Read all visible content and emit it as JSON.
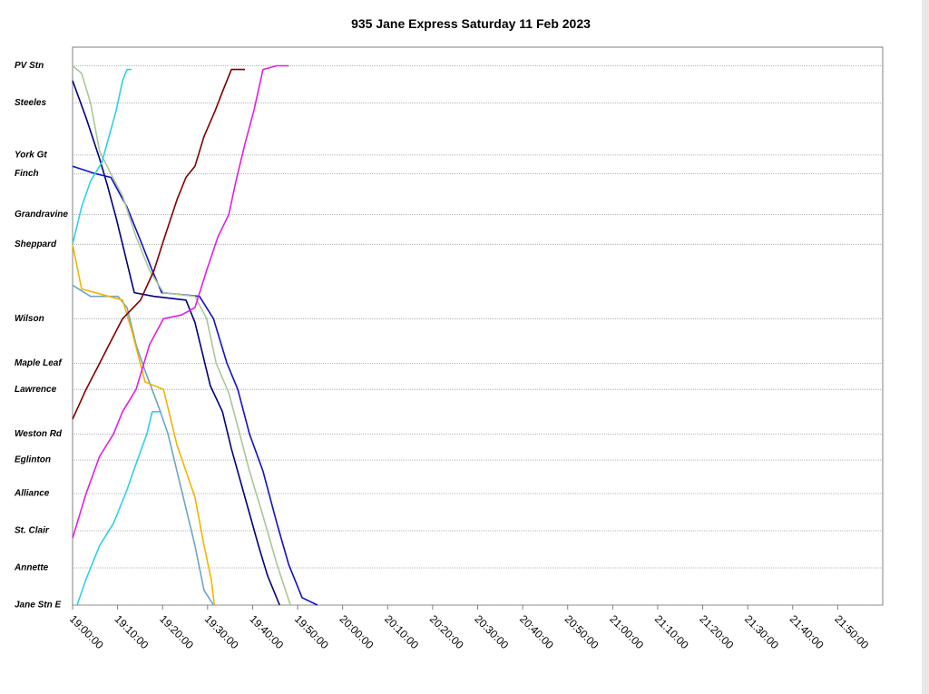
{
  "chart_data": {
    "type": "line",
    "title": "935 Jane Express Saturday 11 Feb 2023",
    "xlim": [
      1140,
      1320
    ],
    "xticks": [
      {
        "value": 1140,
        "label": "19:00:00"
      },
      {
        "value": 1150,
        "label": "19:10:00"
      },
      {
        "value": 1160,
        "label": "19:20:00"
      },
      {
        "value": 1170,
        "label": "19:30:00"
      },
      {
        "value": 1180,
        "label": "19:40:00"
      },
      {
        "value": 1190,
        "label": "19:50:00"
      },
      {
        "value": 1200,
        "label": "20:00:00"
      },
      {
        "value": 1210,
        "label": "20:10:00"
      },
      {
        "value": 1220,
        "label": "20:20:00"
      },
      {
        "value": 1230,
        "label": "20:30:00"
      },
      {
        "value": 1240,
        "label": "20:40:00"
      },
      {
        "value": 1250,
        "label": "20:50:00"
      },
      {
        "value": 1260,
        "label": "21:00:00"
      },
      {
        "value": 1270,
        "label": "21:10:00"
      },
      {
        "value": 1280,
        "label": "21:20:00"
      },
      {
        "value": 1290,
        "label": "21:30:00"
      },
      {
        "value": 1300,
        "label": "21:40:00"
      },
      {
        "value": 1310,
        "label": "21:50:00"
      }
    ],
    "ylim": [
      0,
      15
    ],
    "yticks": [
      {
        "value": 14.5,
        "label": "PV Stn"
      },
      {
        "value": 13.5,
        "label": "Steeles"
      },
      {
        "value": 12.1,
        "label": "York Gt"
      },
      {
        "value": 11.6,
        "label": "Finch"
      },
      {
        "value": 10.5,
        "label": "Grandravine"
      },
      {
        "value": 9.7,
        "label": "Sheppard"
      },
      {
        "value": 7.7,
        "label": "Wilson"
      },
      {
        "value": 6.5,
        "label": "Maple Leaf"
      },
      {
        "value": 5.8,
        "label": "Lawrence"
      },
      {
        "value": 4.6,
        "label": "Weston Rd"
      },
      {
        "value": 3.9,
        "label": "Eglinton"
      },
      {
        "value": 3.0,
        "label": "Alliance"
      },
      {
        "value": 2.0,
        "label": "St. Clair"
      },
      {
        "value": 1.0,
        "label": "Annette"
      },
      {
        "value": 0,
        "label": "Jane Stn E"
      }
    ],
    "grid": true,
    "series": [
      {
        "color": "#000080",
        "x": [
          1140.0,
          1143.0,
          1146.0,
          1147.7,
          1149.7,
          1151.1,
          1153.7,
          1158.1,
          1165.2,
          1167.2,
          1170.6,
          1173.3,
          1175.3,
          1178.3,
          1181.3,
          1183.3,
          1186.0
        ],
        "values": [
          14.1,
          13.1,
          12.0,
          11.3,
          10.4,
          9.7,
          8.4,
          8.3,
          8.2,
          7.6,
          5.9,
          5.2,
          4.2,
          2.9,
          1.6,
          0.8,
          0
        ]
      },
      {
        "color": "#1010c8",
        "x": [
          1140.0,
          1145.0,
          1148.5,
          1152.1,
          1155.1,
          1157.7,
          1159.8,
          1168.2,
          1171.3,
          1174.3,
          1176.7,
          1179.3,
          1182.3,
          1185.4,
          1188.0,
          1191.0,
          1194.4
        ],
        "values": [
          11.8,
          11.6,
          11.5,
          10.7,
          9.8,
          9.0,
          8.4,
          8.3,
          7.7,
          6.5,
          5.8,
          4.6,
          3.6,
          2.2,
          1.1,
          0.2,
          0
        ]
      },
      {
        "color": "#a8c898",
        "x": [
          1140.0,
          1142.0,
          1144.0,
          1146.0,
          1148.5,
          1151.1,
          1154.1,
          1157.1,
          1160.2,
          1167.2,
          1169.8,
          1171.9,
          1174.7,
          1176.7,
          1179.3,
          1182.3,
          1185.4,
          1188.4
        ],
        "values": [
          14.5,
          14.3,
          13.5,
          12.2,
          11.6,
          11.0,
          9.9,
          9.0,
          8.4,
          8.3,
          7.7,
          6.5,
          5.7,
          4.8,
          3.6,
          2.4,
          1.1,
          0
        ]
      },
      {
        "color": "#6fa4c4",
        "x": [
          1140.0,
          1144.0,
          1150.1,
          1152.1,
          1154.1,
          1156.1,
          1159.2,
          1161.2,
          1163.2,
          1165.2,
          1167.2,
          1169.2,
          1171.3
        ],
        "values": [
          8.6,
          8.3,
          8.3,
          8.0,
          7.0,
          6.3,
          5.3,
          4.6,
          3.6,
          2.6,
          1.6,
          0.4,
          0.0
        ]
      },
      {
        "color": "#f2b400",
        "x": [
          1140.0,
          1142.0,
          1151.1,
          1153.1,
          1156.1,
          1160.2,
          1163.2,
          1165.2,
          1167.2,
          1169.2,
          1170.8,
          1171.5
        ],
        "values": [
          9.7,
          8.5,
          8.2,
          7.4,
          6.0,
          5.8,
          4.3,
          3.6,
          2.9,
          1.6,
          0.7,
          0
        ]
      },
      {
        "color": "#30d0e4",
        "x": [
          1140.0,
          1142.0,
          1144.0,
          1146.5,
          1148.1,
          1149.7,
          1151.1,
          1152.1,
          1153.1
        ],
        "values": [
          9.7,
          10.7,
          11.4,
          11.9,
          12.6,
          13.3,
          14.1,
          14.4,
          14.4
        ]
      },
      {
        "color": "#30d0e4",
        "x": [
          1141.0,
          1143.0,
          1146.0,
          1149.1,
          1152.1,
          1154.1,
          1156.5,
          1157.7,
          1159.8
        ],
        "values": [
          0,
          0.7,
          1.6,
          2.2,
          3.1,
          3.8,
          4.6,
          5.2,
          5.2
        ]
      },
      {
        "color": "#800000",
        "x": [
          1140.0,
          1143.0,
          1146.0,
          1148.1,
          1151.1,
          1155.1,
          1158.1,
          1160.2,
          1163.2,
          1165.2,
          1167.2,
          1169.2,
          1171.7,
          1173.3,
          1175.3,
          1178.3
        ],
        "values": [
          5.0,
          5.8,
          6.5,
          7.0,
          7.7,
          8.2,
          9.0,
          9.8,
          10.9,
          11.5,
          11.8,
          12.6,
          13.3,
          13.8,
          14.4,
          14.4
        ]
      },
      {
        "color": "#e020e0",
        "x": [
          1140.0,
          1143.0,
          1146.0,
          1149.1,
          1151.1,
          1154.1,
          1157.1,
          1160.2,
          1164.2,
          1167.2,
          1169.8,
          1172.3,
          1174.7,
          1176.3,
          1178.3,
          1180.3,
          1182.3,
          1185.4,
          1188.0
        ],
        "values": [
          1.8,
          3.0,
          4.0,
          4.6,
          5.2,
          5.8,
          7.0,
          7.7,
          7.8,
          8.0,
          9.0,
          9.9,
          10.5,
          11.4,
          12.4,
          13.3,
          14.4,
          14.5,
          14.5
        ]
      }
    ]
  }
}
